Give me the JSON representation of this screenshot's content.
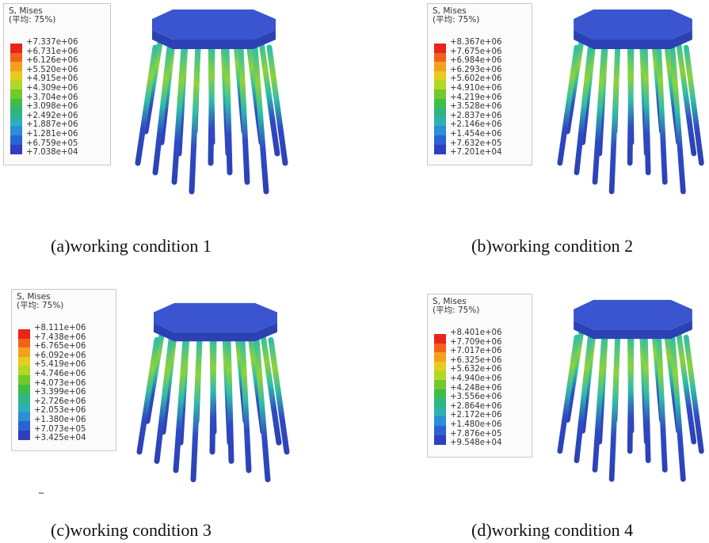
{
  "panels": [
    {
      "id": "a",
      "caption": "(a)working condition 1",
      "legend": {
        "title": "S, Mises",
        "subtitle": "(平均: 75%)",
        "values": [
          "+7.337e+06",
          "+6.731e+06",
          "+6.126e+06",
          "+5.520e+06",
          "+4.915e+06",
          "+4.309e+06",
          "+3.704e+06",
          "+3.098e+06",
          "+2.492e+06",
          "+1.887e+06",
          "+1.281e+06",
          "+6.759e+05",
          "+7.038e+04"
        ]
      }
    },
    {
      "id": "b",
      "caption": "(b)working condition 2",
      "legend": {
        "title": "S, Mises",
        "subtitle": "(平均: 75%)",
        "values": [
          "+8.367e+06",
          "+7.675e+06",
          "+6.984e+06",
          "+6.293e+06",
          "+5.602e+06",
          "+4.910e+06",
          "+4.219e+06",
          "+3.528e+06",
          "+2.837e+06",
          "+2.146e+06",
          "+1.454e+06",
          "+7.632e+05",
          "+7.201e+04"
        ]
      }
    },
    {
      "id": "c",
      "caption": "(c)working condition 3",
      "legend": {
        "title": "S, Mises",
        "subtitle": "(平均: 75%)",
        "values": [
          "+8.111e+06",
          "+7.438e+06",
          "+6.765e+06",
          "+6.092e+06",
          "+5.419e+06",
          "+4.746e+06",
          "+4.073e+06",
          "+3.399e+06",
          "+2.726e+06",
          "+2.053e+06",
          "+1.380e+06",
          "+7.073e+05",
          "+3.425e+04"
        ]
      }
    },
    {
      "id": "d",
      "caption": "(d)working condition 4",
      "legend": {
        "title": "S, Mises",
        "subtitle": "(平均: 75%)",
        "values": [
          "+8.401e+06",
          "+7.709e+06",
          "+7.017e+06",
          "+6.325e+06",
          "+5.632e+06",
          "+4.940e+06",
          "+4.248e+06",
          "+3.556e+06",
          "+2.864e+06",
          "+2.172e+06",
          "+1.480e+06",
          "+7.876e+05",
          "+9.548e+04"
        ]
      }
    }
  ],
  "colormap": [
    "#e8241c",
    "#f2621a",
    "#f5a01c",
    "#e6cc1f",
    "#b6d624",
    "#72c92e",
    "#3fbd49",
    "#2fb582",
    "#2db0b4",
    "#2a8fd6",
    "#2a63d3",
    "#2f3fbf",
    "#2f3aa6"
  ],
  "model_colors": {
    "cap_top": "#3a55cf",
    "cap_side": "#2c42b4",
    "pile_base": "#2f4ac4",
    "pile_hot": "#8fd23a",
    "pile_warm": "#2fbfa6"
  }
}
